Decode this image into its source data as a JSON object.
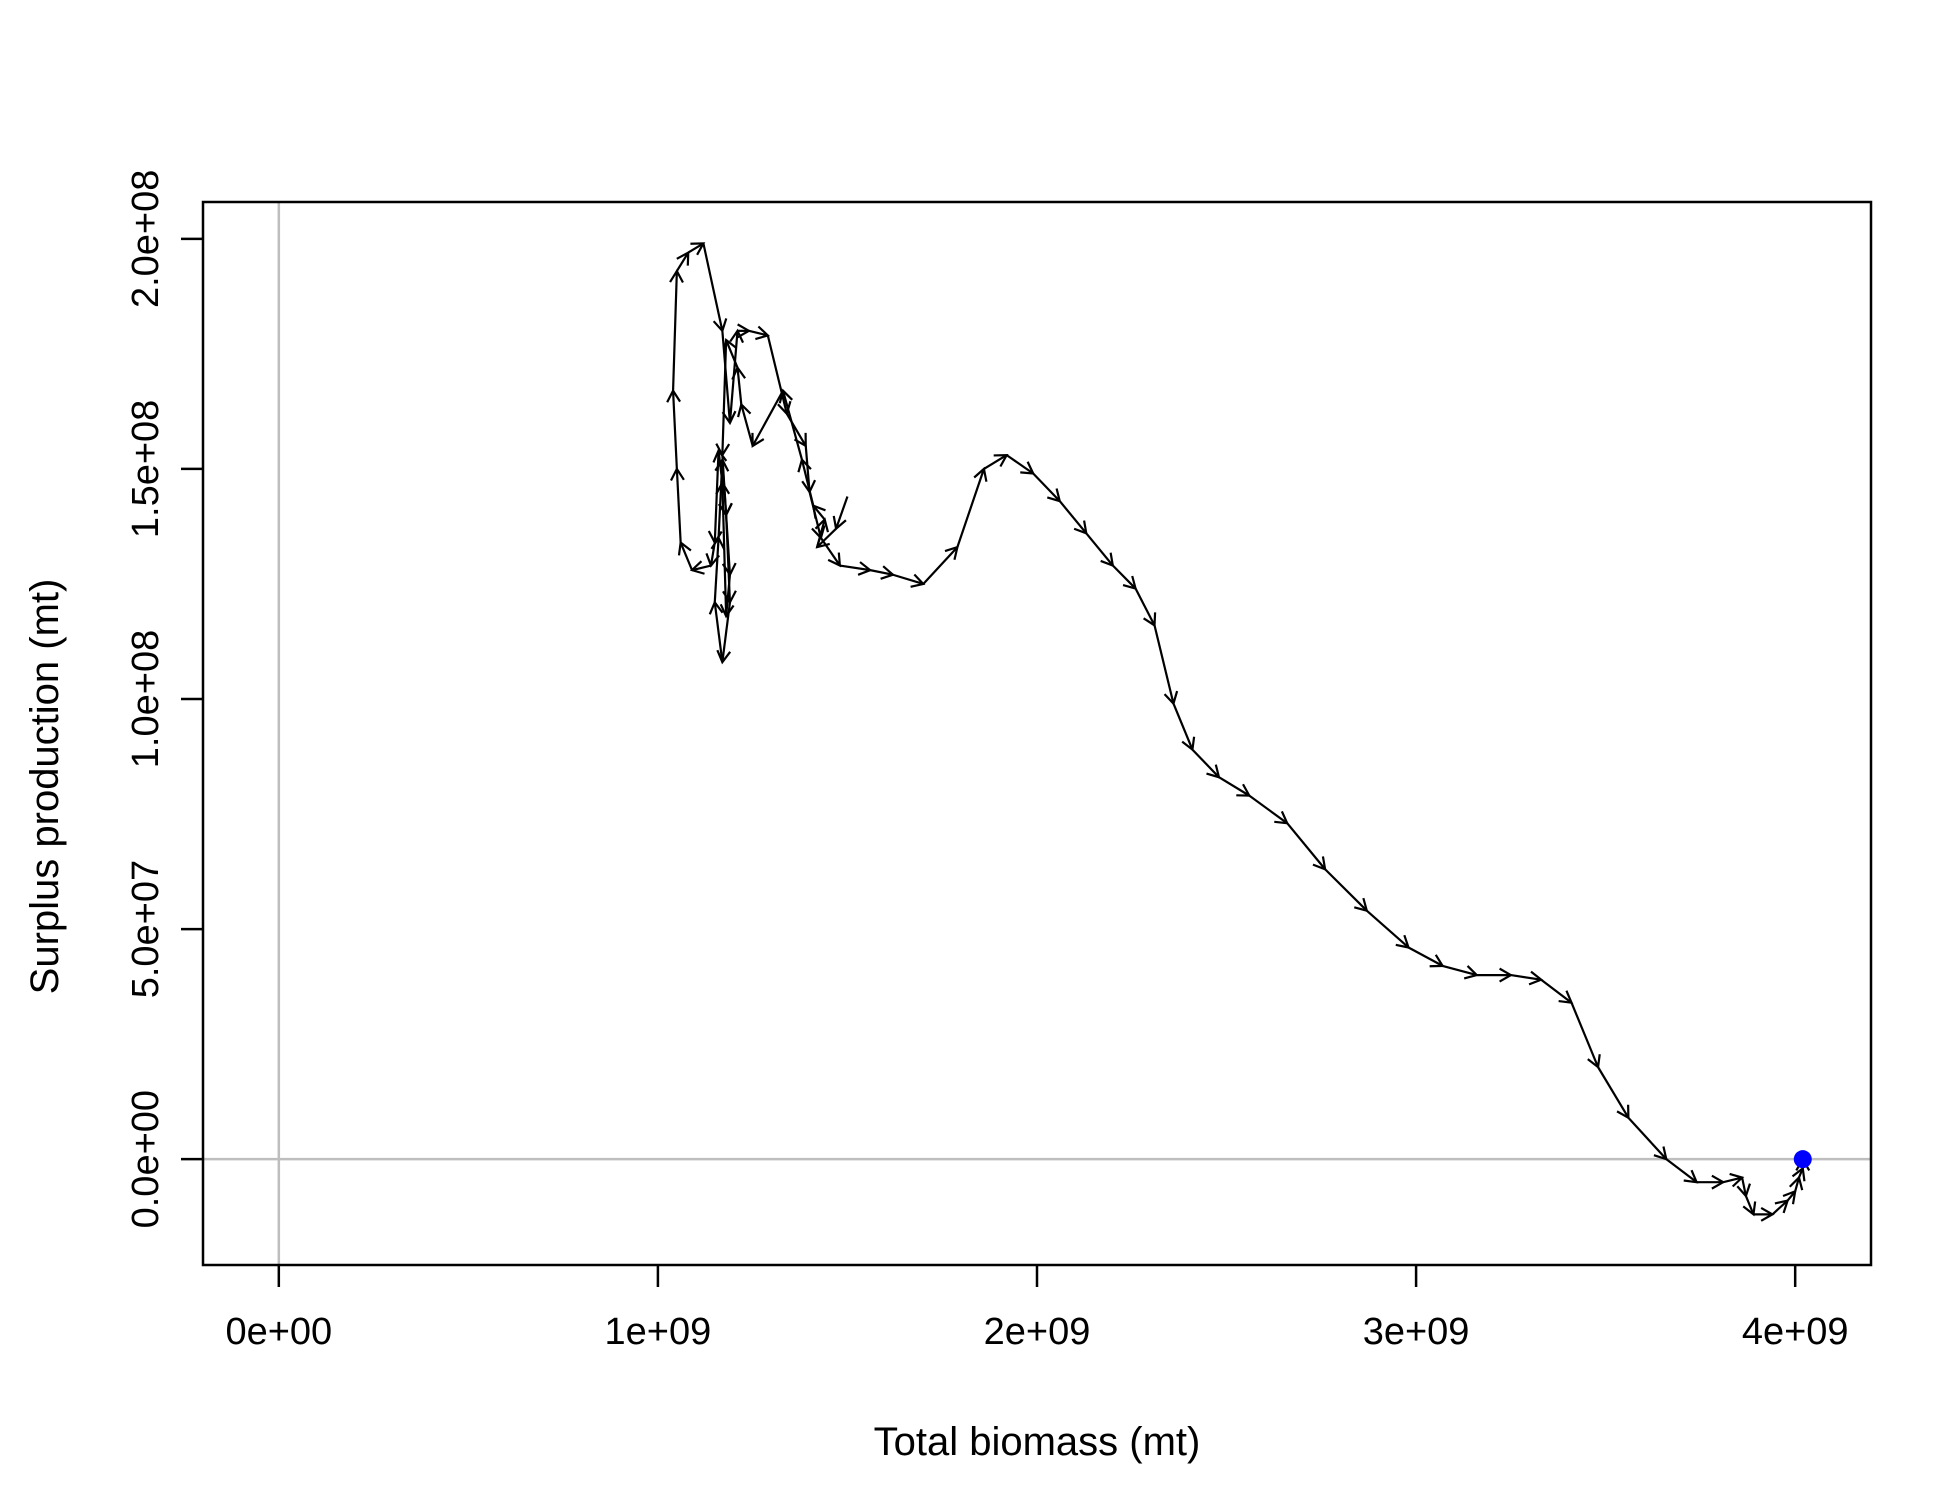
{
  "chart_data": {
    "type": "line",
    "title": "",
    "xlabel": "Total biomass (mt)",
    "ylabel": "Surplus production (mt)",
    "xlim": [
      -200000000,
      4200000000
    ],
    "ylim": [
      -23000000,
      208000000
    ],
    "x_ticks": [
      {
        "value": 0,
        "label": "0e+00"
      },
      {
        "value": 1000000000,
        "label": "1e+09"
      },
      {
        "value": 2000000000,
        "label": "2e+09"
      },
      {
        "value": 3000000000,
        "label": "3e+09"
      },
      {
        "value": 4000000000,
        "label": "4e+09"
      }
    ],
    "y_ticks": [
      {
        "value": 0,
        "label": "0.0e+00"
      },
      {
        "value": 50000000,
        "label": "5.0e+07"
      },
      {
        "value": 100000000,
        "label": "1.0e+08"
      },
      {
        "value": 150000000,
        "label": "1.5e+08"
      },
      {
        "value": 200000000,
        "label": "2.0e+08"
      }
    ],
    "reference_lines": {
      "x": 0,
      "y": 0,
      "color": "#bebebe"
    },
    "grid": false,
    "legend": "none",
    "line_color": "#000000",
    "marker_color": "#0000ff",
    "arrows": true,
    "series": [
      {
        "x": [
          1500000000,
          1470000000,
          1420000000,
          1440000000,
          1410000000,
          1380000000,
          1330000000,
          1250000000,
          1220000000,
          1210000000,
          1180000000,
          1170000000,
          1180000000,
          1190000000,
          1170000000,
          1150000000,
          1160000000,
          1170000000,
          1180000000,
          1190000000,
          1180000000,
          1170000000,
          1160000000,
          1150000000,
          1140000000,
          1090000000,
          1060000000,
          1050000000,
          1040000000,
          1050000000,
          1080000000,
          1120000000,
          1170000000,
          1190000000,
          1210000000,
          1240000000,
          1290000000,
          1340000000,
          1390000000,
          1400000000,
          1430000000,
          1480000000,
          1560000000,
          1620000000,
          1700000000,
          1790000000,
          1860000000,
          1920000000,
          1990000000,
          2060000000,
          2130000000,
          2200000000,
          2260000000,
          2310000000,
          2360000000,
          2410000000,
          2480000000,
          2560000000,
          2660000000,
          2760000000,
          2870000000,
          2980000000,
          3070000000,
          3160000000,
          3250000000,
          3330000000,
          3410000000,
          3480000000,
          3560000000,
          3660000000,
          3740000000,
          3810000000,
          3860000000,
          3870000000,
          3890000000,
          3940000000,
          3980000000,
          4000000000,
          4010000000,
          4020000000,
          4020000000
        ],
        "y": [
          144000000,
          137000000,
          133000000,
          139000000,
          142000000,
          152000000,
          167000000,
          155000000,
          164000000,
          172000000,
          178000000,
          153000000,
          140000000,
          121000000,
          108000000,
          121000000,
          135000000,
          152000000,
          140000000,
          127000000,
          118000000,
          147000000,
          154000000,
          134000000,
          129000000,
          128000000,
          134000000,
          150000000,
          167000000,
          193000000,
          197000000,
          199000000,
          180000000,
          160000000,
          180000000,
          180000000,
          179000000,
          162000000,
          155000000,
          145000000,
          135000000,
          129000000,
          128000000,
          127000000,
          125000000,
          133000000,
          150000000,
          153000000,
          149000000,
          143000000,
          136000000,
          129000000,
          124000000,
          116000000,
          99000000,
          89000000,
          83000000,
          79000000,
          73000000,
          63000000,
          54000000,
          46000000,
          42000000,
          40000000,
          40000000,
          39000000,
          34000000,
          20000000,
          9000000,
          0,
          -5000000,
          -5000000,
          -4000000,
          -8000000,
          -12000000,
          -12000000,
          -9000000,
          -7000000,
          -4000000,
          -2000000,
          0
        ]
      }
    ],
    "end_point": {
      "x": 4020000000,
      "y": 0
    }
  }
}
